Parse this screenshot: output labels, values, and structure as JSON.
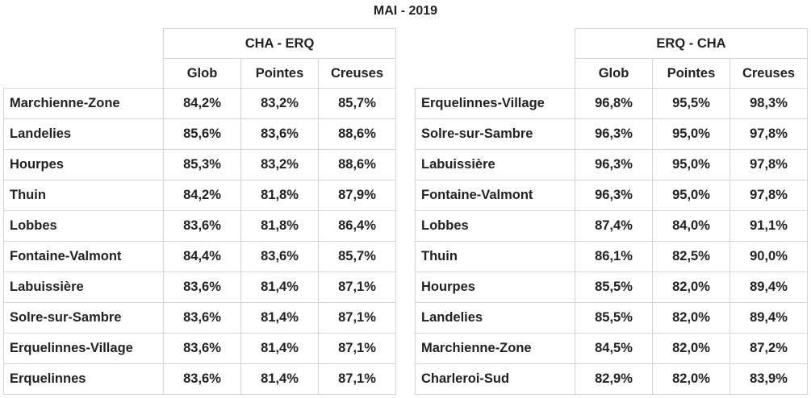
{
  "title": "MAI - 2019",
  "left": {
    "group_header": "CHA - ERQ",
    "columns": [
      "Glob",
      "Pointes",
      "Creuses"
    ],
    "rows": [
      {
        "name": "Marchienne-Zone",
        "glob": "84,2%",
        "pointes": "83,2%",
        "creuses": "85,7%"
      },
      {
        "name": "Landelies",
        "glob": "85,6%",
        "pointes": "83,6%",
        "creuses": "88,6%"
      },
      {
        "name": "Hourpes",
        "glob": "85,3%",
        "pointes": "83,2%",
        "creuses": "88,6%"
      },
      {
        "name": "Thuin",
        "glob": "84,2%",
        "pointes": "81,8%",
        "creuses": "87,9%"
      },
      {
        "name": "Lobbes",
        "glob": "83,6%",
        "pointes": "81,8%",
        "creuses": "86,4%"
      },
      {
        "name": "Fontaine-Valmont",
        "glob": "84,4%",
        "pointes": "83,6%",
        "creuses": "85,7%"
      },
      {
        "name": "Labuissière",
        "glob": "83,6%",
        "pointes": "81,4%",
        "creuses": "87,1%"
      },
      {
        "name": "Solre-sur-Sambre",
        "glob": "83,6%",
        "pointes": "81,4%",
        "creuses": "87,1%"
      },
      {
        "name": "Erquelinnes-Village",
        "glob": "83,6%",
        "pointes": "81,4%",
        "creuses": "87,1%"
      },
      {
        "name": "Erquelinnes",
        "glob": "83,6%",
        "pointes": "81,4%",
        "creuses": "87,1%"
      }
    ]
  },
  "right": {
    "group_header": "ERQ - CHA",
    "columns": [
      "Glob",
      "Pointes",
      "Creuses"
    ],
    "rows": [
      {
        "name": "Erquelinnes-Village",
        "glob": "96,8%",
        "pointes": "95,5%",
        "creuses": "98,3%"
      },
      {
        "name": "Solre-sur-Sambre",
        "glob": "96,3%",
        "pointes": "95,0%",
        "creuses": "97,8%"
      },
      {
        "name": "Labuissière",
        "glob": "96,3%",
        "pointes": "95,0%",
        "creuses": "97,8%"
      },
      {
        "name": "Fontaine-Valmont",
        "glob": "96,3%",
        "pointes": "95,0%",
        "creuses": "97,8%"
      },
      {
        "name": "Lobbes",
        "glob": "87,4%",
        "pointes": "84,0%",
        "creuses": "91,1%"
      },
      {
        "name": "Thuin",
        "glob": "86,1%",
        "pointes": "82,5%",
        "creuses": "90,0%"
      },
      {
        "name": "Hourpes",
        "glob": "85,5%",
        "pointes": "82,0%",
        "creuses": "89,4%"
      },
      {
        "name": "Landelies",
        "glob": "85,5%",
        "pointes": "82,0%",
        "creuses": "89,4%"
      },
      {
        "name": "Marchienne-Zone",
        "glob": "84,5%",
        "pointes": "82,0%",
        "creuses": "87,2%"
      },
      {
        "name": "Charleroi-Sud",
        "glob": "82,9%",
        "pointes": "82,0%",
        "creuses": "83,9%"
      }
    ]
  }
}
